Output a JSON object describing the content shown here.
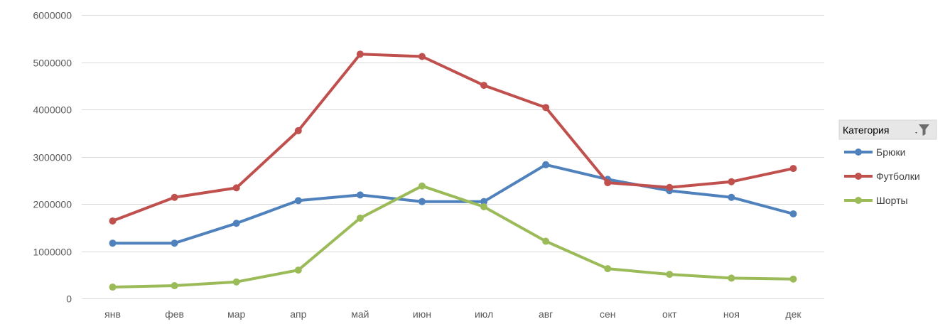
{
  "legend": {
    "title": "Категория",
    "filter_icon": "filter-funnel-icon"
  },
  "chart_data": {
    "type": "line",
    "categories": [
      "янв",
      "фев",
      "мар",
      "апр",
      "май",
      "июн",
      "июл",
      "авг",
      "сен",
      "окт",
      "ноя",
      "дек"
    ],
    "ylim": [
      0,
      6000000
    ],
    "yticks": [
      "0",
      "1000000",
      "2000000",
      "3000000",
      "4000000",
      "5000000",
      "6000000"
    ],
    "grid": true,
    "legend_position": "right",
    "series": [
      {
        "name": "Брюки",
        "color": "#4f81bd",
        "values": [
          1170000,
          1170000,
          1590000,
          2070000,
          2190000,
          2050000,
          2050000,
          2830000,
          2520000,
          2280000,
          2140000,
          1790000
        ]
      },
      {
        "name": "Футболки",
        "color": "#c0504d",
        "values": [
          1640000,
          2140000,
          2340000,
          3550000,
          5170000,
          5120000,
          4510000,
          4040000,
          2450000,
          2350000,
          2470000,
          2750000
        ]
      },
      {
        "name": "Шорты",
        "color": "#9bbb59",
        "values": [
          240000,
          270000,
          350000,
          600000,
          1700000,
          2380000,
          1940000,
          1210000,
          630000,
          510000,
          430000,
          410000
        ]
      }
    ]
  }
}
